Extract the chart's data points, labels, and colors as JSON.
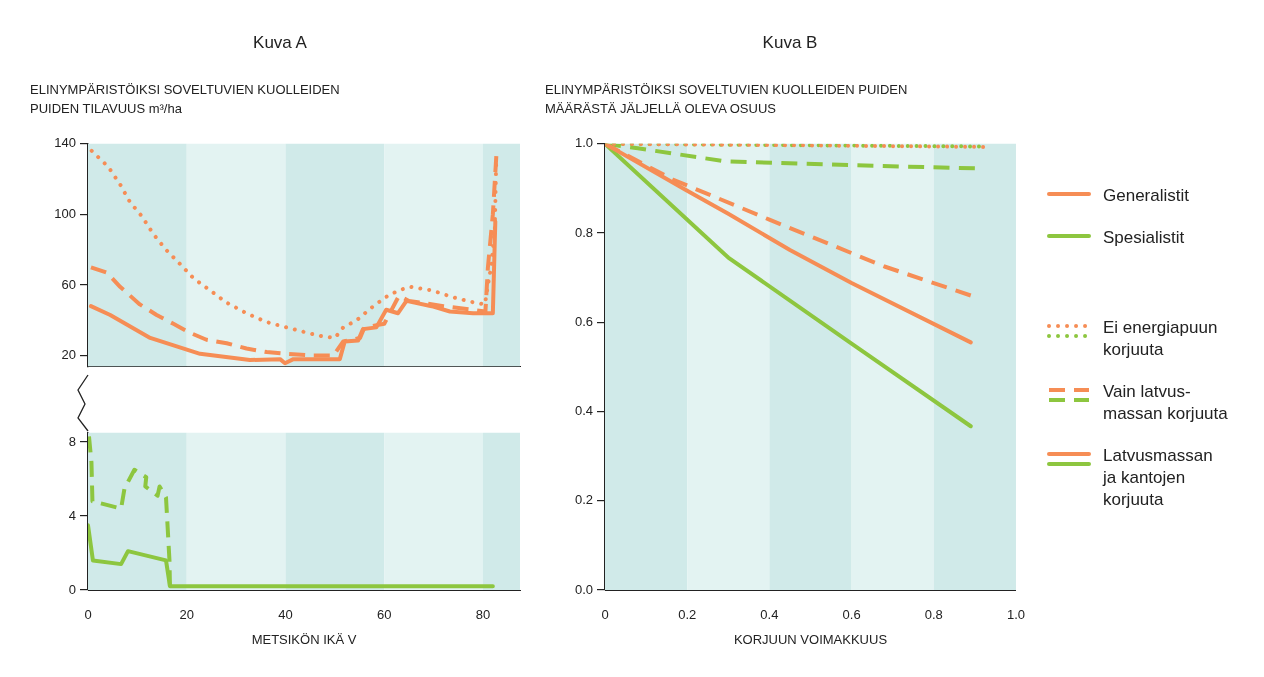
{
  "chart_data": [
    {
      "type": "line",
      "title": "Kuva A",
      "ylabel": "ELINYMPÄRISTÖIKSI SOVELTUVIEN KUOLLEIDEN PUIDEN TILAVUUS m³/ha",
      "xlim": [
        0,
        87.5
      ],
      "ylim": [
        14,
        140
      ],
      "yticks": [
        20,
        60,
        100,
        140
      ],
      "tick_labels": "y",
      "bands": [
        {
          "axis": "x",
          "from": 0,
          "to": 20,
          "color": "#d0eae9"
        },
        {
          "axis": "x",
          "from": 20,
          "to": 40,
          "color": "#e3f3f2"
        },
        {
          "axis": "x",
          "from": 40,
          "to": 60,
          "color": "#d0eae9"
        },
        {
          "axis": "x",
          "from": 60,
          "to": 80,
          "color": "#e3f3f2"
        },
        {
          "axis": "x",
          "from": 80,
          "to": 87.5,
          "color": "#d0eae9"
        }
      ],
      "series": [
        {
          "color": "#f68d55",
          "line_style": "dotted",
          "x": [
            0.75,
            4.1,
            6.5,
            8.5,
            10.9,
            13.2,
            15.8,
            18.6,
            21.3,
            24.7,
            28.1,
            32.1,
            36.2,
            40.2,
            44.3,
            47.3,
            50,
            51.7,
            54.4,
            57.8,
            60.8,
            63,
            65.2,
            69.6,
            74,
            78.3,
            80.4,
            81,
            81.7,
            82.4,
            82.7
          ],
          "values": [
            136,
            127,
            117,
            107,
            99,
            89,
            80,
            72,
            64,
            57,
            50,
            44,
            39,
            36,
            33,
            31,
            30,
            36,
            40,
            48,
            54,
            57,
            59,
            57,
            53,
            50,
            49,
            60,
            71,
            92,
            133
          ]
        },
        {
          "color": "#f68d55",
          "line_style": "dashed",
          "x": [
            0.6,
            3.8,
            6.5,
            10.5,
            13.9,
            17.3,
            20.6,
            24,
            28.1,
            32.1,
            36.2,
            40.2,
            45.6,
            49.7,
            51.7,
            55.1,
            56,
            60,
            63,
            65,
            72,
            80.5,
            81,
            82,
            82.7
          ],
          "values": [
            70,
            67,
            59,
            49,
            43,
            38,
            33,
            29,
            27,
            24,
            22,
            21,
            20,
            20,
            28,
            30,
            36,
            38,
            54,
            51,
            48,
            45,
            70,
            100,
            133
          ]
        },
        {
          "color": "#f68d55",
          "line_style": "solid",
          "x": [
            0.6,
            4.5,
            12.6,
            22.7,
            32.8,
            38.9,
            39.9,
            41.6,
            51,
            52,
            54.7,
            55.7,
            58.4,
            60.4,
            62.8,
            64.5,
            69.6,
            73.3,
            78,
            82,
            82.5
          ],
          "values": [
            48,
            43,
            30,
            21,
            17.5,
            18,
            15.7,
            18,
            18,
            28,
            28.5,
            35,
            36,
            46,
            44,
            51,
            48,
            45,
            44,
            44,
            96
          ]
        }
      ]
    },
    {
      "type": "line",
      "xlabel": "METSIKÖN IKÄ V",
      "xlim": [
        0,
        87.5
      ],
      "xticks": [
        0,
        20,
        40,
        60,
        80
      ],
      "ylim": [
        0,
        8.5
      ],
      "yticks": [
        0,
        4,
        8
      ],
      "bands": [
        {
          "axis": "x",
          "from": 0,
          "to": 20,
          "color": "#d0eae9"
        },
        {
          "axis": "x",
          "from": 20,
          "to": 40,
          "color": "#e3f3f2"
        },
        {
          "axis": "x",
          "from": 40,
          "to": 60,
          "color": "#d0eae9"
        },
        {
          "axis": "x",
          "from": 60,
          "to": 80,
          "color": "#e3f3f2"
        },
        {
          "axis": "x",
          "from": 80,
          "to": 87.5,
          "color": "#d0eae9"
        }
      ],
      "series": [
        {
          "color": "#8dc63f",
          "line_style": "dashed",
          "x": [
            0.2,
            0.7,
            0.9,
            6.7,
            7.4,
            9.4,
            11.8,
            11.6,
            14.1,
            14.5,
            15.8,
            16.5,
            16.6
          ],
          "values": [
            8.3,
            6.9,
            4.8,
            4.4,
            5.5,
            6.5,
            6.1,
            5.6,
            5.1,
            5.6,
            5,
            1.6,
            0.2
          ]
        },
        {
          "color": "#8dc63f",
          "line_style": "solid",
          "x": [
            0,
            1,
            6.7,
            8.1,
            15.8,
            16.6,
            82
          ],
          "values": [
            3.5,
            1.6,
            1.4,
            2.1,
            1.6,
            0.2,
            0.2
          ]
        }
      ]
    },
    {
      "type": "line",
      "title": "Kuva B",
      "ylabel": "ELINYMPÄRISTÖIKSI SOVELTUVIEN KUOLLEIDEN PUIDEN MÄÄRÄSTÄ JÄLJELLÄ OLEVA OSUUS",
      "xlabel": "KORJUUN VOIMAKKUUS",
      "xlim": [
        0,
        1
      ],
      "xticks": [
        0,
        0.2,
        0.4,
        0.6,
        0.8,
        {
          "value": 1,
          "label": "1.0"
        }
      ],
      "ylim": [
        0,
        1
      ],
      "yticks": [
        {
          "value": 0,
          "label": "0.0"
        },
        0.2,
        0.4,
        0.6,
        0.8,
        {
          "value": 1,
          "label": "1.0"
        }
      ],
      "annotations": [
        "Generalistit",
        "Spesialistit",
        "Ei energiapuun korjuuta",
        "Vain latvus-massan korjuuta",
        "Latvusmassan ja kantojen korjuuta"
      ],
      "bands": [
        {
          "axis": "x",
          "from": 0,
          "to": 0.2,
          "color": "#d0eae9"
        },
        {
          "axis": "x",
          "from": 0.2,
          "to": 0.4,
          "color": "#e3f3f2"
        },
        {
          "axis": "x",
          "from": 0.4,
          "to": 0.6,
          "color": "#d0eae9"
        },
        {
          "axis": "x",
          "from": 0.6,
          "to": 0.8,
          "color": "#e3f3f2"
        },
        {
          "axis": "x",
          "from": 0.8,
          "to": 1,
          "color": "#d0eae9"
        }
      ],
      "series": [
        {
          "color": "#f68d55",
          "line_style": "dotted",
          "x": [
            0,
            0.3,
            0.92
          ],
          "values": [
            1,
            0.998,
            0.993
          ]
        },
        {
          "color": "#8dc63f",
          "line_style": "dotted",
          "x": [
            0,
            0.91
          ],
          "values": [
            1,
            0.994
          ]
        },
        {
          "color": "#f68d55",
          "line_style": "dashed",
          "x": [
            0,
            0.165,
            0.4,
            0.68,
            0.89
          ],
          "values": [
            1,
            0.92,
            0.83,
            0.725,
            0.66
          ]
        },
        {
          "color": "#8dc63f",
          "line_style": "dashed",
          "x": [
            0,
            0.08,
            0.29,
            0.6,
            0.9
          ],
          "values": [
            1,
            0.99,
            0.961,
            0.952,
            0.945
          ]
        },
        {
          "color": "#f68d55",
          "line_style": "solid",
          "x": [
            0,
            0.2,
            0.3,
            0.45,
            0.6,
            0.89
          ],
          "values": [
            1,
            0.895,
            0.843,
            0.762,
            0.688,
            0.555
          ]
        },
        {
          "color": "#8dc63f",
          "line_style": "solid",
          "x": [
            0,
            0.3,
            0.6,
            0.89
          ],
          "values": [
            1,
            0.745,
            0.552,
            0.367
          ]
        }
      ]
    }
  ]
}
